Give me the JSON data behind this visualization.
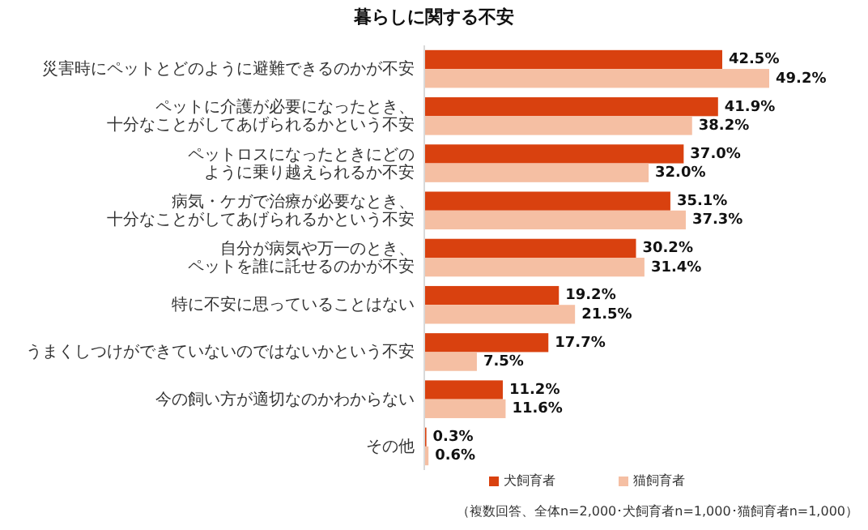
{
  "chart_data": {
    "type": "bar",
    "orientation": "horizontal",
    "title": "暮らしに関する不安",
    "categories": [
      "災害時にペットとどのように避難できるのかが不安",
      "ペットに介護が必要になったとき、十分なことがしてあげられるかという不安",
      "ペットロスになったときにどのように乗り越えられるか不安",
      "病気・ケガで治療が必要なとき、十分なことがしてあげられるかという不安",
      "自分が病気や万一のとき、ペットを誰に託せるのかが不安",
      "特に不安に思っていることはない",
      "うまくしつけができていないのではないかという不安",
      "今の飼い方が適切なのかわからない",
      "その他"
    ],
    "series": [
      {
        "name": "犬飼育者",
        "color": "#d9410f",
        "values": [
          42.5,
          41.9,
          37.0,
          35.1,
          30.2,
          19.2,
          17.7,
          11.2,
          0.3
        ],
        "value_labels": [
          "42.5%",
          "41.9%",
          "37.0%",
          "35.1%",
          "30.2%",
          "19.2%",
          "17.7%",
          "11.2%",
          "0.3%"
        ]
      },
      {
        "name": "猫飼育者",
        "color": "#f5bfa3",
        "values": [
          49.2,
          38.2,
          32.0,
          37.3,
          31.4,
          21.5,
          7.5,
          11.6,
          0.6
        ],
        "value_labels": [
          "49.2%",
          "38.2%",
          "32.0%",
          "37.3%",
          "31.4%",
          "21.5%",
          "7.5%",
          "11.6%",
          "0.6%"
        ]
      }
    ],
    "legend": "bottom",
    "relative": false,
    "annotations": [
      "（複数回答、全体n=2,000･犬飼育者n=1,000･猫飼育者n=1,000）"
    ]
  }
}
